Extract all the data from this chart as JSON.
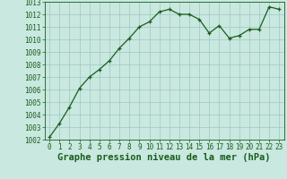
{
  "x": [
    0,
    1,
    2,
    3,
    4,
    5,
    6,
    7,
    8,
    9,
    10,
    11,
    12,
    13,
    14,
    15,
    16,
    17,
    18,
    19,
    20,
    21,
    22,
    23
  ],
  "y": [
    1002.2,
    1003.3,
    1004.6,
    1006.1,
    1007.0,
    1007.6,
    1008.3,
    1009.3,
    1010.1,
    1011.0,
    1011.4,
    1012.2,
    1012.4,
    1012.0,
    1012.0,
    1011.6,
    1010.5,
    1011.1,
    1010.1,
    1010.3,
    1010.8,
    1010.8,
    1012.6,
    1012.4
  ],
  "ylim": [
    1002,
    1013
  ],
  "xlim_min": -0.5,
  "xlim_max": 23.5,
  "yticks": [
    1002,
    1003,
    1004,
    1005,
    1006,
    1007,
    1008,
    1009,
    1010,
    1011,
    1012,
    1013
  ],
  "xticks": [
    0,
    1,
    2,
    3,
    4,
    5,
    6,
    7,
    8,
    9,
    10,
    11,
    12,
    13,
    14,
    15,
    16,
    17,
    18,
    19,
    20,
    21,
    22,
    23
  ],
  "xlabel": "Graphe pression niveau de la mer (hPa)",
  "line_color": "#1a5c1a",
  "marker": "+",
  "marker_size": 3.5,
  "marker_linewidth": 0.9,
  "line_width": 0.9,
  "bg_color": "#c8e8e0",
  "grid_color": "#a0c8c0",
  "tick_label_color": "#1a5c1a",
  "tick_label_size": 5.5,
  "xlabel_size": 7.5,
  "xlabel_color": "#1a5c1a"
}
